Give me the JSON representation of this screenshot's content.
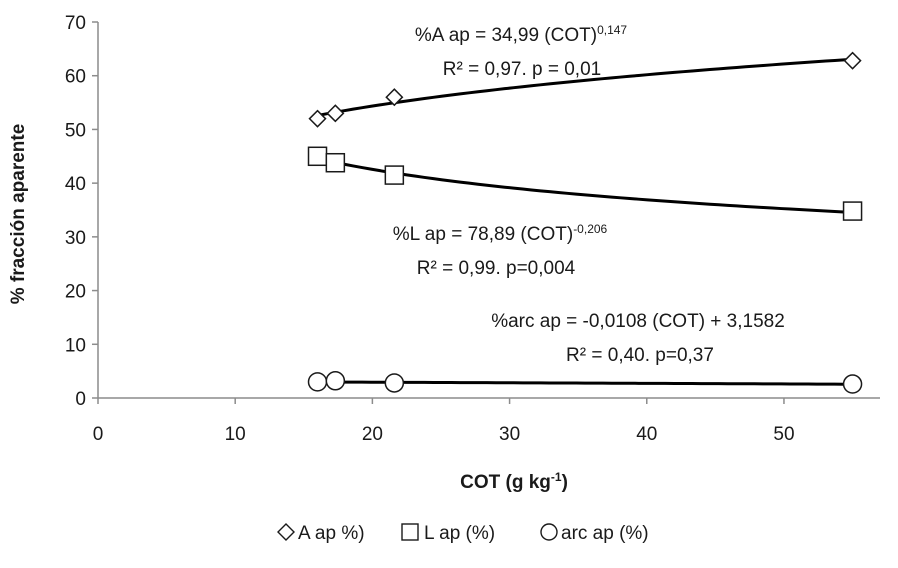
{
  "chart_data": {
    "type": "scatter",
    "xlabel": {
      "main": "COT (g kg",
      "sup": "-1",
      "close": ")"
    },
    "ylabel": "% fracción aparente",
    "xlim": [
      0,
      57
    ],
    "ylim": [
      0,
      70
    ],
    "xticks": [
      0,
      10,
      20,
      30,
      40,
      50
    ],
    "yticks": [
      0,
      10,
      20,
      30,
      40,
      50,
      60,
      70
    ],
    "grid": false,
    "legend_position": "bottom",
    "series": [
      {
        "name": "A ap %)",
        "marker": "diamond",
        "x": [
          16.0,
          17.3,
          21.6,
          55.0
        ],
        "y": [
          52.0,
          53.0,
          56.0,
          62.8
        ],
        "fit": {
          "type": "power",
          "a": 34.99,
          "b": 0.147
        }
      },
      {
        "name": "L ap (%)",
        "marker": "square",
        "x": [
          16.0,
          17.3,
          21.6,
          55.0
        ],
        "y": [
          45.0,
          43.8,
          41.5,
          34.8
        ],
        "fit": {
          "type": "power",
          "a": 78.89,
          "b": -0.206
        }
      },
      {
        "name": "arc ap (%)",
        "marker": "circle",
        "x": [
          16.0,
          17.3,
          21.6,
          55.0
        ],
        "y": [
          3.0,
          3.2,
          2.8,
          2.6
        ],
        "fit": {
          "type": "linear",
          "a": -0.0108,
          "b": 3.1582
        }
      }
    ],
    "annotations": [
      {
        "name": "eq-a",
        "line1": "%A ap = 34,99 (COT)",
        "sup1": "0,147",
        "line2": "R² = 0,97. p = 0,01"
      },
      {
        "name": "eq-l",
        "line1": "%L ap = 78,89 (COT)",
        "sup1": "-0,206",
        "line2": "R² = 0,99. p=0,004"
      },
      {
        "name": "eq-arc",
        "line1": "%arc ap = -0,0108 (COT) + 3,1582",
        "sup1": "",
        "line2": "R² = 0,40. p=0,37"
      }
    ]
  }
}
